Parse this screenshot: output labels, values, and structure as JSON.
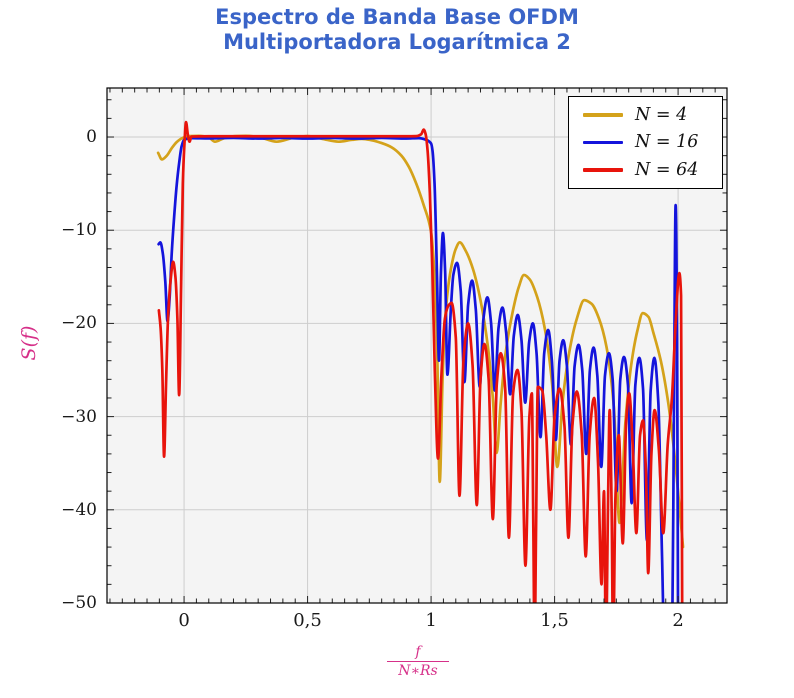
{
  "title": {
    "line1": "Espectro de Banda Base OFDM",
    "line2": "Multiportadora Logarítmica 2",
    "color": "#3a64c8"
  },
  "axis_labels": {
    "y_label": "S(f)",
    "x_label_numerator": "f",
    "x_label_denominator": "N∗Rs",
    "label_color": "#d63089"
  },
  "legend": {
    "position": "top-right"
  },
  "chart_data": {
    "type": "line",
    "title": "Espectro de Banda Base OFDM Multiportadora Logarítmica 2",
    "xlabel": "f/(N*Rs)",
    "ylabel": "S(f)",
    "xlim": [
      -0.312,
      2.198
    ],
    "ylim": [
      -50.0,
      5.26
    ],
    "grid": true,
    "grid_color": "#cdcdcd",
    "plot_background": "#f4f4f4",
    "frame_color": "#000000",
    "legend_position": "top-right",
    "x_ticks": [
      {
        "v": 0,
        "label": "0"
      },
      {
        "v": 0.5,
        "label": "0,5"
      },
      {
        "v": 1,
        "label": "1"
      },
      {
        "v": 1.5,
        "label": "1,5"
      },
      {
        "v": 2,
        "label": "2"
      }
    ],
    "y_ticks": [
      {
        "v": 0,
        "label": "0"
      },
      {
        "v": -10,
        "label": "−10"
      },
      {
        "v": -20,
        "label": "−20"
      },
      {
        "v": -30,
        "label": "−30"
      },
      {
        "v": -40,
        "label": "−40"
      },
      {
        "v": -50,
        "label": "−50"
      }
    ],
    "x_minor_step": 0.05,
    "y_minor_step": 2,
    "series": [
      {
        "name": "N = 4",
        "color": "#d4a21a",
        "points": [
          [
            -0.105,
            -1.7
          ],
          [
            -0.09,
            -2.4
          ],
          [
            -0.07,
            -2.0
          ],
          [
            -0.05,
            -1.2
          ],
          [
            -0.03,
            -0.55
          ],
          [
            -0.01,
            -0.15
          ],
          [
            0.02,
            0.1
          ],
          [
            0.06,
            0.12
          ],
          [
            0.1,
            -0.05
          ],
          [
            0.125,
            -0.5
          ],
          [
            0.16,
            -0.15
          ],
          [
            0.21,
            0.1
          ],
          [
            0.25,
            0.12
          ],
          [
            0.3,
            0.0
          ],
          [
            0.375,
            -0.5
          ],
          [
            0.44,
            -0.1
          ],
          [
            0.5,
            0.1
          ],
          [
            0.56,
            -0.2
          ],
          [
            0.625,
            -0.5
          ],
          [
            0.68,
            -0.3
          ],
          [
            0.72,
            -0.2
          ],
          [
            0.76,
            -0.35
          ],
          [
            0.8,
            -0.65
          ],
          [
            0.84,
            -1.1
          ],
          [
            0.88,
            -2.0
          ],
          [
            0.91,
            -3.2
          ],
          [
            0.94,
            -5.0
          ],
          [
            0.97,
            -7.3
          ],
          [
            1.0,
            -10.2
          ],
          [
            1.012,
            -14
          ],
          [
            1.024,
            -22
          ],
          [
            1.035,
            -37
          ],
          [
            1.047,
            -25.5
          ],
          [
            1.06,
            -18.5
          ],
          [
            1.08,
            -14.2
          ],
          [
            1.1,
            -12.0
          ],
          [
            1.116,
            -11.3
          ],
          [
            1.14,
            -12.2
          ],
          [
            1.17,
            -14.2
          ],
          [
            1.2,
            -17.5
          ],
          [
            1.23,
            -22.5
          ],
          [
            1.25,
            -28
          ],
          [
            1.265,
            -33.9
          ],
          [
            1.282,
            -28.5
          ],
          [
            1.3,
            -23.5
          ],
          [
            1.33,
            -18.8
          ],
          [
            1.355,
            -16.1
          ],
          [
            1.376,
            -14.8
          ],
          [
            1.4,
            -15.3
          ],
          [
            1.43,
            -17.2
          ],
          [
            1.46,
            -20.5
          ],
          [
            1.49,
            -26.5
          ],
          [
            1.511,
            -35.4
          ],
          [
            1.532,
            -28.5
          ],
          [
            1.56,
            -23
          ],
          [
            1.59,
            -19.5
          ],
          [
            1.62,
            -17.5
          ],
          [
            1.65,
            -17.9
          ],
          [
            1.68,
            -19.5
          ],
          [
            1.71,
            -22.5
          ],
          [
            1.74,
            -29
          ],
          [
            1.763,
            -41.4
          ],
          [
            1.787,
            -30.5
          ],
          [
            1.81,
            -24.5
          ],
          [
            1.835,
            -20.8
          ],
          [
            1.857,
            -18.9
          ],
          [
            1.88,
            -19.3
          ],
          [
            1.9,
            -21
          ],
          [
            1.93,
            -24
          ],
          [
            1.96,
            -28.5
          ],
          [
            1.985,
            -34
          ],
          [
            2.005,
            -39.5
          ],
          [
            2.02,
            -44
          ]
        ]
      },
      {
        "name": "N = 16",
        "color": "#1414dc",
        "points": [
          [
            -0.103,
            -11.5
          ],
          [
            -0.096,
            -11.3
          ],
          [
            -0.086,
            -12.5
          ],
          [
            -0.076,
            -15.5
          ],
          [
            -0.067,
            -19.8
          ],
          [
            -0.059,
            -17.5
          ],
          [
            -0.05,
            -12.5
          ],
          [
            -0.04,
            -8.5
          ],
          [
            -0.03,
            -5.2
          ],
          [
            -0.02,
            -2.8
          ],
          [
            -0.01,
            -1.0
          ],
          [
            0.0,
            -0.3
          ],
          [
            0.03,
            -0.12
          ],
          [
            0.1,
            -0.15
          ],
          [
            0.2,
            -0.1
          ],
          [
            0.3,
            -0.16
          ],
          [
            0.4,
            -0.1
          ],
          [
            0.5,
            -0.16
          ],
          [
            0.6,
            -0.1
          ],
          [
            0.7,
            -0.16
          ],
          [
            0.8,
            -0.1
          ],
          [
            0.9,
            -0.16
          ],
          [
            0.95,
            -0.12
          ],
          [
            0.98,
            -0.3
          ],
          [
            1.0,
            -0.7
          ],
          [
            1.006,
            -1.5
          ],
          [
            1.014,
            -5
          ],
          [
            1.024,
            -15
          ],
          [
            1.032,
            -24
          ],
          [
            1.04,
            -14.5
          ],
          [
            1.048,
            -10.3
          ],
          [
            1.057,
            -14.5
          ],
          [
            1.066,
            -25.5
          ],
          [
            1.08,
            -18.5
          ],
          [
            1.09,
            -14.8
          ],
          [
            1.105,
            -13.5
          ],
          [
            1.12,
            -16.5
          ],
          [
            1.135,
            -26.3
          ],
          [
            1.15,
            -18
          ],
          [
            1.166,
            -15.4
          ],
          [
            1.181,
            -18.5
          ],
          [
            1.197,
            -26.8
          ],
          [
            1.212,
            -19.5
          ],
          [
            1.228,
            -17.2
          ],
          [
            1.243,
            -20
          ],
          [
            1.258,
            -27.2
          ],
          [
            1.273,
            -20.5
          ],
          [
            1.289,
            -18.3
          ],
          [
            1.304,
            -21
          ],
          [
            1.32,
            -27.6
          ],
          [
            1.335,
            -21.3
          ],
          [
            1.351,
            -19.1
          ],
          [
            1.366,
            -21.8
          ],
          [
            1.381,
            -28.5
          ],
          [
            1.397,
            -22
          ],
          [
            1.412,
            -20.0
          ],
          [
            1.427,
            -23.2
          ],
          [
            1.443,
            -32.2
          ],
          [
            1.458,
            -23.2
          ],
          [
            1.474,
            -20.7
          ],
          [
            1.489,
            -24
          ],
          [
            1.505,
            -32.5
          ],
          [
            1.52,
            -24
          ],
          [
            1.535,
            -21.8
          ],
          [
            1.55,
            -24.6
          ],
          [
            1.566,
            -33
          ],
          [
            1.581,
            -24.6
          ],
          [
            1.597,
            -22.3
          ],
          [
            1.612,
            -25
          ],
          [
            1.628,
            -34
          ],
          [
            1.643,
            -25
          ],
          [
            1.658,
            -22.6
          ],
          [
            1.673,
            -25.6
          ],
          [
            1.689,
            -35.4
          ],
          [
            1.704,
            -25.6
          ],
          [
            1.72,
            -23.2
          ],
          [
            1.735,
            -26
          ],
          [
            1.751,
            -38
          ],
          [
            1.766,
            -26
          ],
          [
            1.781,
            -23.6
          ],
          [
            1.797,
            -26.6
          ],
          [
            1.812,
            -39.3
          ],
          [
            1.827,
            -26.6
          ],
          [
            1.843,
            -23.7
          ],
          [
            1.858,
            -27
          ],
          [
            1.874,
            -43.3
          ],
          [
            1.889,
            -27.2
          ],
          [
            1.904,
            -23.7
          ],
          [
            1.92,
            -28.5
          ],
          [
            1.935,
            -45
          ],
          [
            1.944,
            -54
          ],
          [
            1.976,
            -54
          ],
          [
            1.983,
            -30
          ],
          [
            1.99,
            -7.3
          ],
          [
            1.996,
            -22
          ],
          [
            2.0,
            -54
          ]
        ]
      },
      {
        "name": "N = 64",
        "color": "#e8140c",
        "points": [
          [
            -0.102,
            -18.6
          ],
          [
            -0.095,
            -20.5
          ],
          [
            -0.088,
            -25
          ],
          [
            -0.081,
            -34.3
          ],
          [
            -0.073,
            -26.5
          ],
          [
            -0.065,
            -19.5
          ],
          [
            -0.055,
            -15.5
          ],
          [
            -0.044,
            -13.4
          ],
          [
            -0.035,
            -15
          ],
          [
            -0.027,
            -19.5
          ],
          [
            -0.02,
            -27.7
          ],
          [
            -0.012,
            -16
          ],
          [
            -0.005,
            -5
          ],
          [
            0.001,
            -1.0
          ],
          [
            0.008,
            1.6
          ],
          [
            0.015,
            0.3
          ],
          [
            0.022,
            -0.5
          ],
          [
            0.03,
            0.05
          ],
          [
            0.1,
            0.08
          ],
          [
            0.3,
            0.08
          ],
          [
            0.5,
            0.08
          ],
          [
            0.7,
            0.08
          ],
          [
            0.9,
            0.08
          ],
          [
            0.94,
            0.1
          ],
          [
            0.96,
            0.3
          ],
          [
            0.97,
            0.8
          ],
          [
            0.978,
            0.3
          ],
          [
            0.986,
            -1.5
          ],
          [
            0.995,
            -6
          ],
          [
            1.005,
            -14
          ],
          [
            1.015,
            -25
          ],
          [
            1.028,
            -34.5
          ],
          [
            1.042,
            -25.5
          ],
          [
            1.056,
            -19.5
          ],
          [
            1.07,
            -18.1
          ],
          [
            1.083,
            -17.8
          ],
          [
            1.1,
            -21.5
          ],
          [
            1.115,
            -38.5
          ],
          [
            1.131,
            -24
          ],
          [
            1.15,
            -20.0
          ],
          [
            1.168,
            -24.5
          ],
          [
            1.185,
            -39.5
          ],
          [
            1.2,
            -26
          ],
          [
            1.216,
            -22.2
          ],
          [
            1.233,
            -26
          ],
          [
            1.25,
            -41
          ],
          [
            1.266,
            -26.5
          ],
          [
            1.282,
            -23.2
          ],
          [
            1.3,
            -27
          ],
          [
            1.315,
            -43
          ],
          [
            1.332,
            -27.5
          ],
          [
            1.35,
            -25.0
          ],
          [
            1.366,
            -29.5
          ],
          [
            1.382,
            -46
          ],
          [
            1.398,
            -30
          ],
          [
            1.408,
            -27.5
          ],
          [
            1.414,
            -42
          ],
          [
            1.419,
            -55
          ],
          [
            1.425,
            -42
          ],
          [
            1.432,
            -26.8
          ],
          [
            1.45,
            -27.2
          ],
          [
            1.466,
            -32
          ],
          [
            1.483,
            -40
          ],
          [
            1.5,
            -30
          ],
          [
            1.52,
            -27.0
          ],
          [
            1.54,
            -31
          ],
          [
            1.556,
            -43
          ],
          [
            1.572,
            -31
          ],
          [
            1.59,
            -27.3
          ],
          [
            1.61,
            -32
          ],
          [
            1.626,
            -45
          ],
          [
            1.642,
            -32
          ],
          [
            1.66,
            -28
          ],
          [
            1.676,
            -35
          ],
          [
            1.69,
            -48
          ],
          [
            1.7,
            -38
          ],
          [
            1.708,
            -55
          ],
          [
            1.716,
            -40
          ],
          [
            1.723,
            -29.3
          ],
          [
            1.731,
            -40
          ],
          [
            1.737,
            -55
          ],
          [
            1.746,
            -39
          ],
          [
            1.76,
            -32
          ],
          [
            1.776,
            -43.6
          ],
          [
            1.79,
            -30.5
          ],
          [
            1.802,
            -27.5
          ],
          [
            1.816,
            -33
          ],
          [
            1.831,
            -42.5
          ],
          [
            1.846,
            -32
          ],
          [
            1.858,
            -30.4
          ],
          [
            1.87,
            -36
          ],
          [
            1.879,
            -46.8
          ],
          [
            1.892,
            -34
          ],
          [
            1.905,
            -29.3
          ],
          [
            1.922,
            -33.5
          ],
          [
            1.94,
            -42.5
          ],
          [
            1.958,
            -33
          ],
          [
            1.975,
            -28
          ],
          [
            1.99,
            -20
          ],
          [
            2.005,
            -14.6
          ],
          [
            2.012,
            -17
          ],
          [
            2.017,
            -55
          ]
        ]
      }
    ]
  }
}
